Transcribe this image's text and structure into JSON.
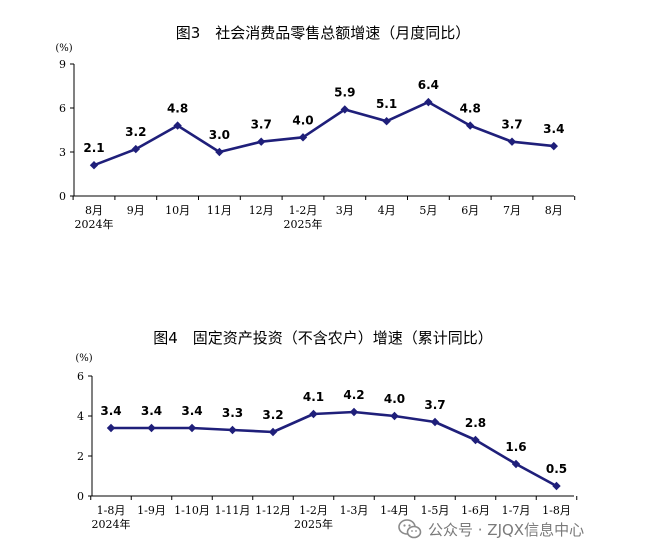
{
  "chart_data": [
    {
      "type": "line",
      "title": "图3　社会消费品零售总额增速（月度同比）",
      "ylabel": "(%)",
      "ylim": [
        0,
        9
      ],
      "yticks": [
        "0",
        "3",
        "6",
        "9"
      ],
      "categories": [
        "8月",
        "9月",
        "10月",
        "11月",
        "12月",
        "1-2月",
        "3月",
        "4月",
        "5月",
        "6月",
        "7月",
        "8月"
      ],
      "year_labels": [
        {
          "index": 0,
          "text": "2024年"
        },
        {
          "index": 5,
          "text": "2025年"
        }
      ],
      "values": [
        2.1,
        3.2,
        4.8,
        3.0,
        3.7,
        4.0,
        5.9,
        5.1,
        6.4,
        4.8,
        3.7,
        3.4
      ],
      "value_labels": [
        "2.1",
        "3.2",
        "4.8",
        "3.0",
        "3.7",
        "4.0",
        "5.9",
        "5.1",
        "6.4",
        "4.8",
        "3.7",
        "3.4"
      ],
      "color": "#1f1f7a",
      "marker": "diamond",
      "grid": false
    },
    {
      "type": "line",
      "title": "图4　固定资产投资（不含农户）增速（累计同比）",
      "ylabel": "(%)",
      "ylim": [
        0,
        6
      ],
      "yticks": [
        "0",
        "2",
        "4",
        "6"
      ],
      "categories": [
        "1-8月",
        "1-9月",
        "1-10月",
        "1-11月",
        "1-12月",
        "1-2月",
        "1-3月",
        "1-4月",
        "1-5月",
        "1-6月",
        "1-7月",
        "1-8月"
      ],
      "year_labels": [
        {
          "index": 0,
          "text": "2024年"
        },
        {
          "index": 5,
          "text": "2025年"
        }
      ],
      "values": [
        3.4,
        3.4,
        3.4,
        3.3,
        3.2,
        4.1,
        4.2,
        4.0,
        3.7,
        2.8,
        1.6,
        0.5
      ],
      "value_labels": [
        "3.4",
        "3.4",
        "3.4",
        "3.3",
        "3.2",
        "4.1",
        "4.2",
        "4.0",
        "3.7",
        "2.8",
        "1.6",
        "0.5"
      ],
      "color": "#1f1f7a",
      "marker": "diamond",
      "grid": false
    }
  ],
  "watermark": {
    "text": "公众号 · ZJQX信息中心",
    "icon": "wechat-icon",
    "color": "#7a7a7a"
  }
}
